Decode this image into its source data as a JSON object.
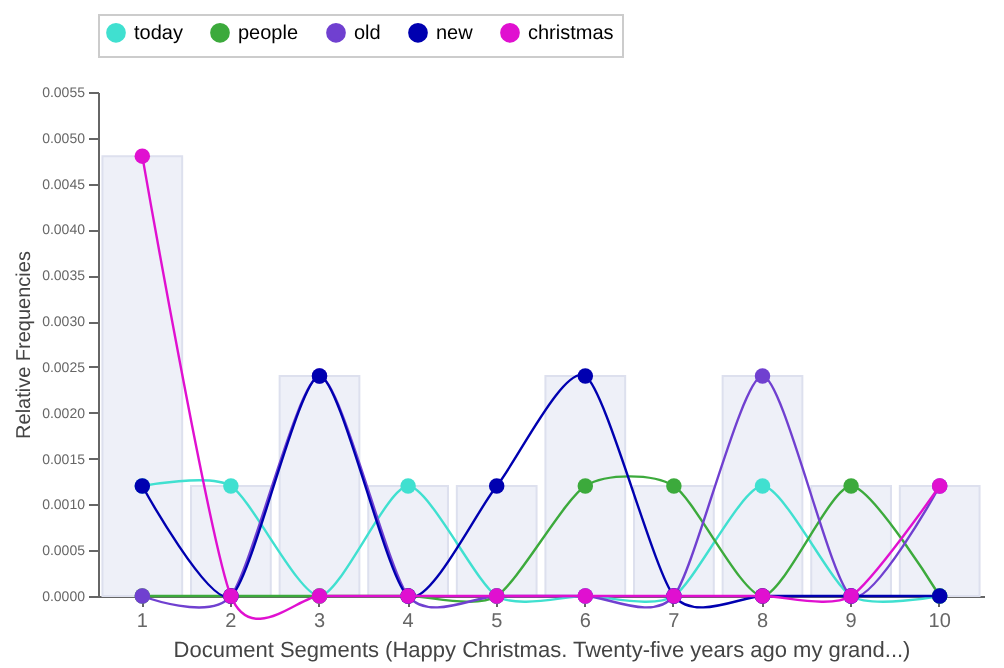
{
  "chart_data": {
    "type": "line",
    "xlabel": "Document Segments (Happy Christmas. Twenty-five years ago my grand...)",
    "ylabel": "Relative Frequencies",
    "categories": [
      "1",
      "2",
      "3",
      "4",
      "5",
      "6",
      "7",
      "8",
      "9",
      "10"
    ],
    "series": [
      {
        "type": "bar",
        "color": "#eef0f8",
        "values": [
          0.0048,
          0.0012,
          0.0024,
          0.0012,
          0.0012,
          0.0024,
          0.0012,
          0.0024,
          0.0012,
          0.0012
        ]
      },
      {
        "name": "today",
        "color": "#40e0d0",
        "values": [
          0.0012,
          0.0012,
          0,
          0.0012,
          0,
          0,
          0,
          0.0012,
          0,
          0
        ]
      },
      {
        "name": "people",
        "color": "#3caa3c",
        "values": [
          0,
          0,
          0,
          0,
          0,
          0.0012,
          0.0012,
          0,
          0.0012,
          0
        ]
      },
      {
        "name": "old",
        "color": "#7040d0",
        "values": [
          0,
          0,
          0.0024,
          0,
          0,
          0,
          0,
          0.0024,
          0,
          0.0012
        ]
      },
      {
        "name": "new",
        "color": "#0000b0",
        "values": [
          0.0012,
          0,
          0.0024,
          0,
          0.0012,
          0.0024,
          0,
          0,
          0,
          0
        ]
      },
      {
        "name": "christmas",
        "color": "#e010d0",
        "values": [
          0.0048,
          0,
          0,
          0,
          0,
          0,
          0,
          0,
          0,
          0.0012
        ]
      }
    ],
    "ylim": [
      0,
      0.0055
    ],
    "yticks": [
      {
        "value": 0,
        "label": "0.0000"
      },
      {
        "value": 0.0005,
        "label": "0.0005"
      },
      {
        "value": 0.001,
        "label": "0.0010"
      },
      {
        "value": 0.0015,
        "label": "0.0015"
      },
      {
        "value": 0.002,
        "label": "0.0020"
      },
      {
        "value": 0.0025,
        "label": "0.0025"
      },
      {
        "value": 0.003,
        "label": "0.0030"
      },
      {
        "value": 0.0035,
        "label": "0.0035"
      },
      {
        "value": 0.004,
        "label": "0.0040"
      },
      {
        "value": 0.0045,
        "label": "0.0045"
      },
      {
        "value": 0.005,
        "label": "0.0050"
      },
      {
        "value": 0.0055,
        "label": "0.0055"
      }
    ],
    "grid": false,
    "legend": "top",
    "marker": "circle",
    "line_style": "solid"
  }
}
